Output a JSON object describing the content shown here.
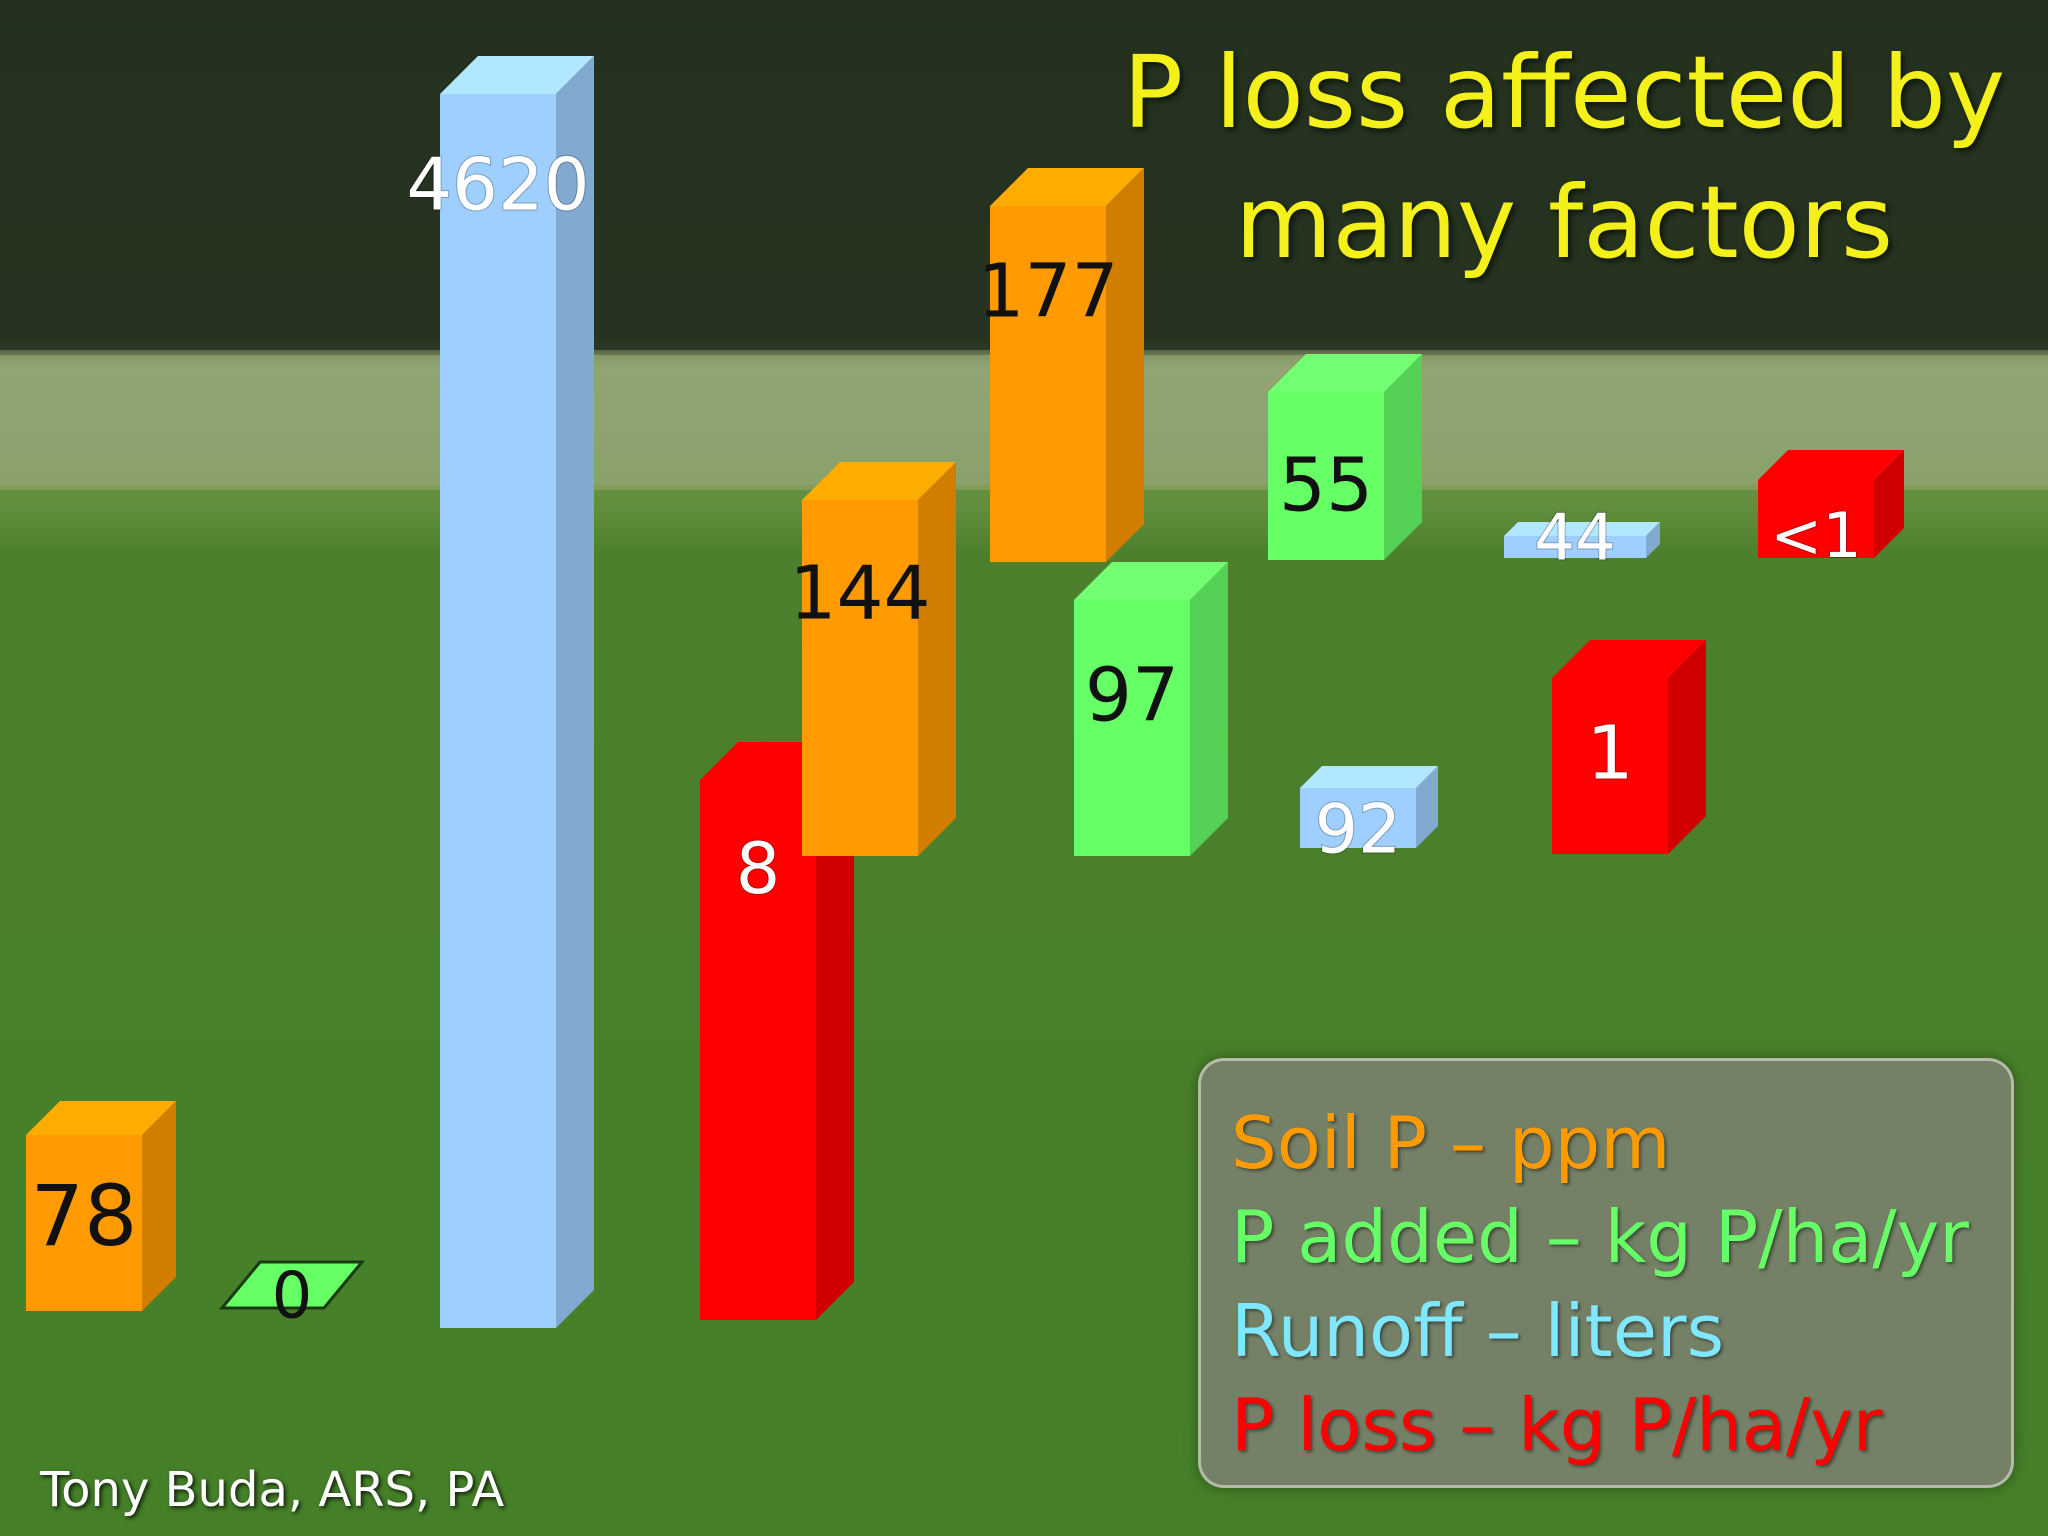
{
  "title_line1": "P loss affected by",
  "title_line2": "many factors",
  "credit": "Tony Buda, ARS, PA",
  "colors": {
    "soil_p": "#ff9a00",
    "p_added": "#66ff66",
    "runoff": "#9fcfff",
    "p_loss": "#ff0000",
    "title": "#f4f01a"
  },
  "legend": [
    {
      "label": "Soil P – ppm",
      "color": "#ff9a00"
    },
    {
      "label": "P added – kg P/ha/yr",
      "color": "#66ff66"
    },
    {
      "label": "Runoff – liters",
      "color": "#7fe8ff"
    },
    {
      "label": "P loss – kg P/ha/yr",
      "color": "#ff0000"
    }
  ],
  "chart_data": {
    "type": "bar",
    "title": "P loss affected by many factors",
    "series": [
      {
        "name": "Soil P – ppm",
        "unit": "ppm",
        "values": [
          78,
          144,
          177
        ]
      },
      {
        "name": "P added – kg P/ha/yr",
        "unit": "kg P/ha/yr",
        "values": [
          0,
          97,
          55
        ]
      },
      {
        "name": "Runoff – liters",
        "unit": "liters",
        "values": [
          4620,
          92,
          44
        ]
      },
      {
        "name": "P loss – kg P/ha/yr",
        "unit": "kg P/ha/yr",
        "values": [
          8,
          1,
          "<1"
        ]
      }
    ],
    "bars": [
      {
        "label": "78",
        "series": "Soil P – ppm"
      },
      {
        "label": "0",
        "series": "P added – kg P/ha/yr"
      },
      {
        "label": "4620",
        "series": "Runoff – liters"
      },
      {
        "label": "8",
        "series": "P loss – kg P/ha/yr"
      },
      {
        "label": "144",
        "series": "Soil P – ppm"
      },
      {
        "label": "177",
        "series": "Soil P – ppm"
      },
      {
        "label": "97",
        "series": "P added – kg P/ha/yr"
      },
      {
        "label": "55",
        "series": "P added – kg P/ha/yr"
      },
      {
        "label": "92",
        "series": "Runoff – liters"
      },
      {
        "label": "44",
        "series": "Runoff – liters"
      },
      {
        "label": "1",
        "series": "P loss – kg P/ha/yr"
      },
      {
        "label": "<1",
        "series": "P loss – kg P/ha/yr"
      }
    ]
  }
}
